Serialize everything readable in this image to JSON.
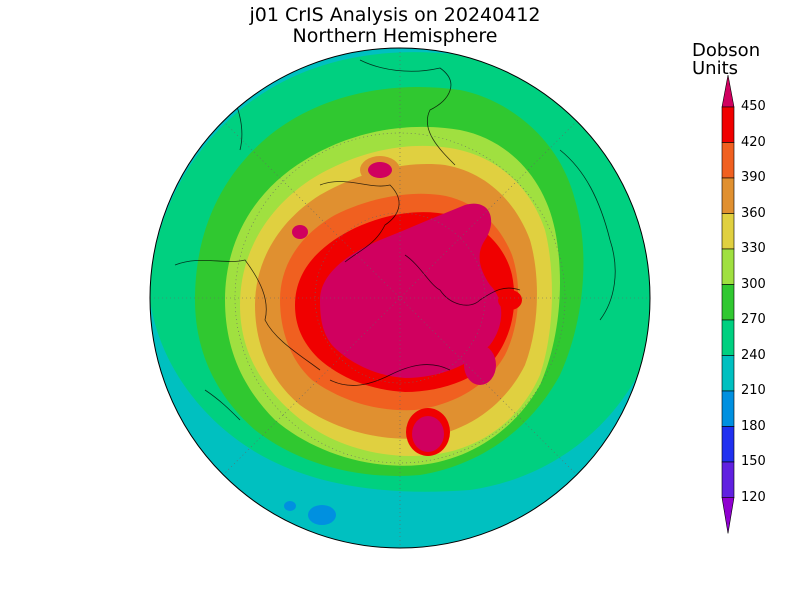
{
  "header": {
    "title": "j01 CrIS Analysis on 20240412",
    "subtitle": "Northern Hemisphere"
  },
  "colorbar": {
    "title_line1": "Dobson",
    "title_line2": "Units",
    "ticks": [
      "450",
      "420",
      "390",
      "360",
      "330",
      "300",
      "270",
      "240",
      "210",
      "180",
      "150",
      "120"
    ],
    "colors": [
      "#d0005f",
      "#f00000",
      "#f06020",
      "#e09030",
      "#e0d040",
      "#a0e040",
      "#30c830",
      "#00d080",
      "#00c0c0",
      "#0090e0",
      "#2030f0",
      "#6020e0",
      "#9000d0"
    ]
  },
  "map": {
    "projection": "north-polar-stereographic",
    "variable": "total-column-ozone",
    "units": "Dobson Units"
  }
}
